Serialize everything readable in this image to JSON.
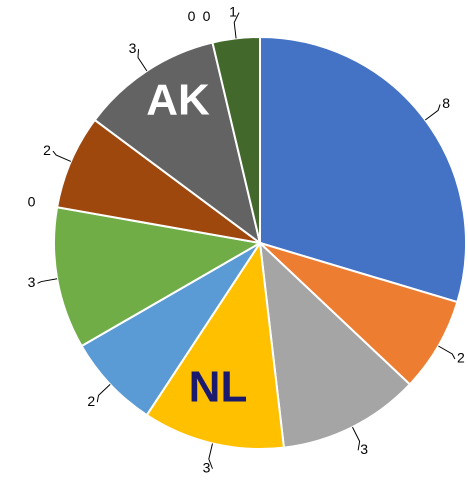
{
  "chart_data": {
    "type": "pie",
    "values": [
      8,
      2,
      3,
      3,
      2,
      3,
      0,
      2,
      3,
      0,
      0,
      1
    ],
    "colors": [
      "#4472c4",
      "#ed7d31",
      "#a5a5a5",
      "#ffc000",
      "#5b9bd5",
      "#70ad47",
      "#264478",
      "#9e480e",
      "#636363",
      "#997300",
      "#255e91",
      "#43682b"
    ],
    "annotations": [
      "AK",
      "NL"
    ]
  }
}
